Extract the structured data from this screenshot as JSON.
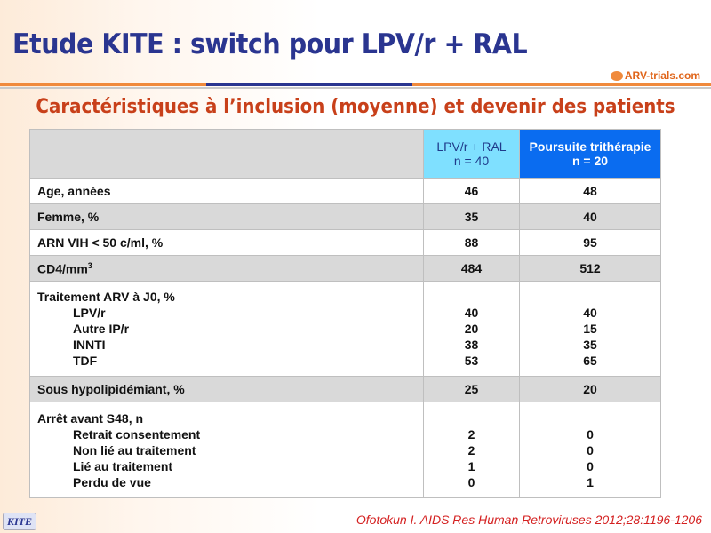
{
  "title": "Etude KITE : switch pour LPV/r + RAL",
  "logo": "ARV-trials.com",
  "subtitle": "Caractéristiques à l’inclusion (moyenne) et devenir des patients",
  "columns": [
    {
      "line1": "LPV/r + RAL",
      "line2": "n = 40"
    },
    {
      "line1": "Poursuite trithérapie",
      "line2": "n = 20"
    }
  ],
  "rows": {
    "age": {
      "label": "Age, années",
      "a": "46",
      "b": "48"
    },
    "femme": {
      "label": "Femme, %",
      "a": "35",
      "b": "40"
    },
    "arn": {
      "label": "ARN VIH < 50 c/ml, %",
      "a": "88",
      "b": "95"
    },
    "cd4": {
      "label": "CD4/mm",
      "sup": "3",
      "a": "484",
      "b": "512"
    },
    "trait": {
      "label": "Traitement ARV à J0, %",
      "items": [
        {
          "l": "LPV/r",
          "a": "40",
          "b": "40"
        },
        {
          "l": "Autre IP/r",
          "a": "20",
          "b": "15"
        },
        {
          "l": "INNTI",
          "a": "38",
          "b": "35"
        },
        {
          "l": "TDF",
          "a": "53",
          "b": "65"
        }
      ]
    },
    "hypo": {
      "label": "Sous hypolipidémiant, %",
      "a": "25",
      "b": "20"
    },
    "arret": {
      "label": "Arrêt avant S48, n",
      "items": [
        {
          "l": "Retrait consentement",
          "a": "2",
          "b": "0"
        },
        {
          "l": "Non lié au traitement",
          "a": "2",
          "b": "0"
        },
        {
          "l": "Lié au traitement",
          "a": "1",
          "b": "0"
        },
        {
          "l": "Perdu de vue",
          "a": "0",
          "b": "1"
        }
      ]
    }
  },
  "badge": "KITE",
  "reference": "Ofotokun I. AIDS Res Human Retroviruses 2012;28:1196-1206"
}
